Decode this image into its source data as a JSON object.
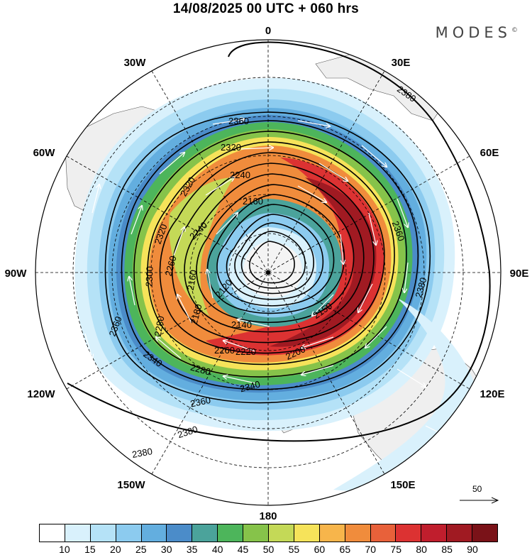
{
  "title": "14/08/2025  00 UTC  + 060 hrs",
  "brand": "MODES",
  "brand_mark": "©",
  "longitude_labels": {
    "n": "0",
    "e30": "30E",
    "e60": "60E",
    "e90": "90E",
    "e120": "120E",
    "e150": "150E",
    "s": "180",
    "w150": "150W",
    "w120": "120W",
    "w90": "90W",
    "w60": "60W",
    "w30": "30W"
  },
  "vector_reference": "50",
  "colorbar": {
    "labels": [
      "10",
      "15",
      "20",
      "25",
      "30",
      "35",
      "40",
      "45",
      "50",
      "55",
      "60",
      "65",
      "70",
      "75",
      "80",
      "85",
      "90"
    ],
    "colors": [
      "#ffffff",
      "#d9f1fc",
      "#b5e2f7",
      "#8ccbef",
      "#63aedf",
      "#4b8cc9",
      "#4ba39b",
      "#4db55b",
      "#86c34a",
      "#c4d957",
      "#f6e35a",
      "#f7b54b",
      "#f08c3c",
      "#e8613a",
      "#dc3232",
      "#c01e2d",
      "#a01a22",
      "#7a1218"
    ]
  },
  "contour_labels": {
    "c2380_top": "2380",
    "c2380_right": "2380",
    "c2380_bl": "2380",
    "c2380_bottom": "2380",
    "c2360_top": "2360",
    "c2360_right": "2360",
    "c2360_left": "2360",
    "c2360_bottom": "2360",
    "c2340_bottom": "2340",
    "c2340_rb": "2340",
    "c2320_top": "2320",
    "c2320_left": "2320",
    "c2320_l2": "2320",
    "c2300_left": "2300",
    "c2280_left": "2280",
    "c2280_bottom": "2280",
    "c2260_left": "2260",
    "c2260_bottom": "2260",
    "c2240_top": "2240",
    "c2240_mid": "2240",
    "c2220_bottom": "2220",
    "c2200_rb": "2200",
    "c2180_left": "2180",
    "c2160_top": "2160",
    "c2160_left": "2160",
    "c2150_right": "2150",
    "c2140_bottom": "2140",
    "c2120_left": "2120"
  }
}
